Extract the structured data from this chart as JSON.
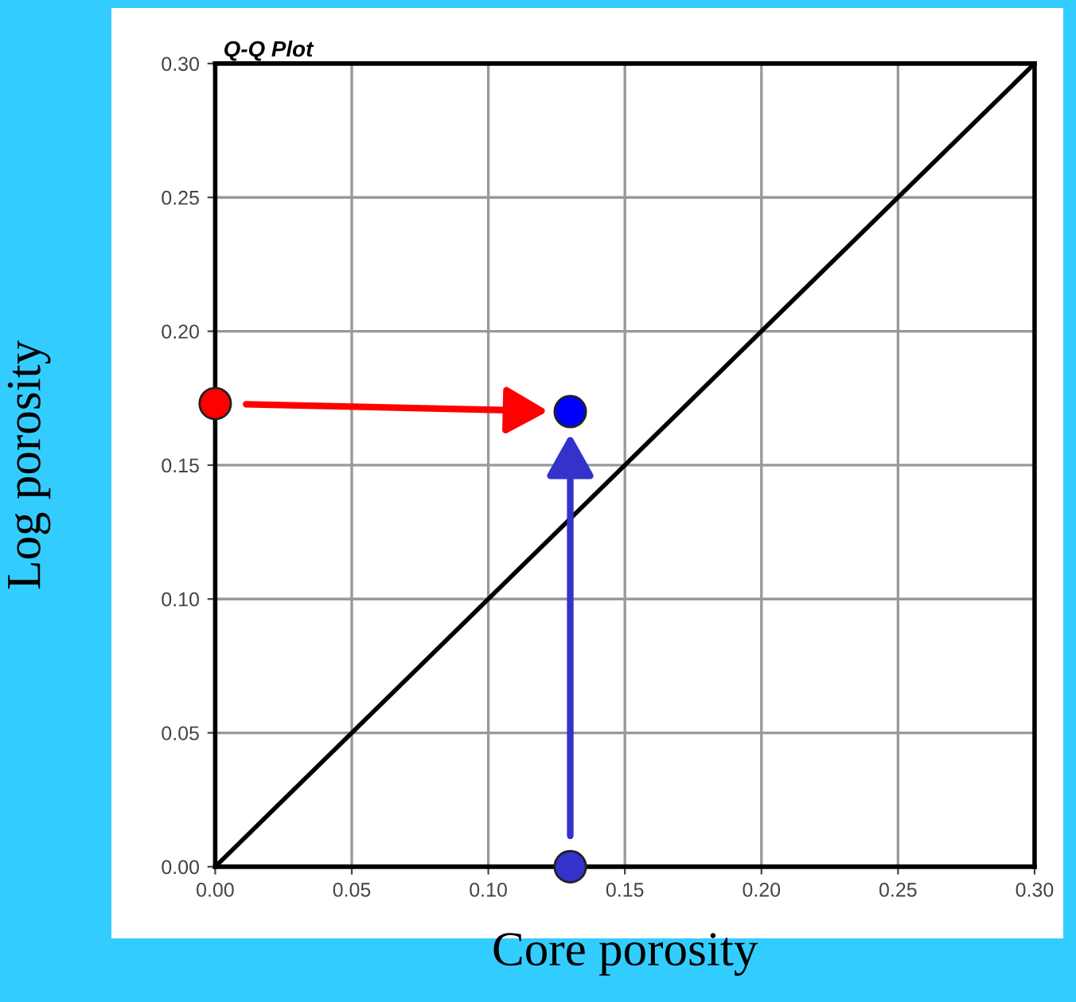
{
  "chart_data": {
    "type": "scatter",
    "title": "Q-Q Plot",
    "xlabel": "Core porosity",
    "ylabel": "Log porosity",
    "xlim": [
      0,
      0.3
    ],
    "ylim": [
      0,
      0.3
    ],
    "xticks": [
      {
        "value": 0,
        "label": "0.00"
      },
      {
        "value": 0.05,
        "label": "0.05"
      },
      {
        "value": 0.1,
        "label": "0.10"
      },
      {
        "value": 0.15,
        "label": "0.15"
      },
      {
        "value": 0.2,
        "label": "0.20"
      },
      {
        "value": 0.25,
        "label": "0.25"
      },
      {
        "value": 0.3,
        "label": "0.30"
      }
    ],
    "yticks": [
      {
        "value": 0,
        "label": "0.00"
      },
      {
        "value": 0.05,
        "label": "0.05"
      },
      {
        "value": 0.1,
        "label": "0.10"
      },
      {
        "value": 0.15,
        "label": "0.15"
      },
      {
        "value": 0.2,
        "label": "0.20"
      },
      {
        "value": 0.25,
        "label": "0.25"
      },
      {
        "value": 0.3,
        "label": "0.30"
      }
    ],
    "grid": true,
    "series": [
      {
        "type": "line",
        "color": "#000000",
        "x": [
          0,
          0.3
        ],
        "values": [
          0,
          0.3
        ]
      },
      {
        "marker": "circle",
        "color": "#ff0000",
        "x": [
          0
        ],
        "values": [
          0.173
        ]
      },
      {
        "marker": "circle",
        "color": "#0000ff",
        "x": [
          0.13
        ],
        "values": [
          0.17
        ]
      },
      {
        "marker": "circle",
        "color": "#3333cc",
        "x": [
          0.13
        ],
        "values": [
          0
        ]
      }
    ]
  }
}
